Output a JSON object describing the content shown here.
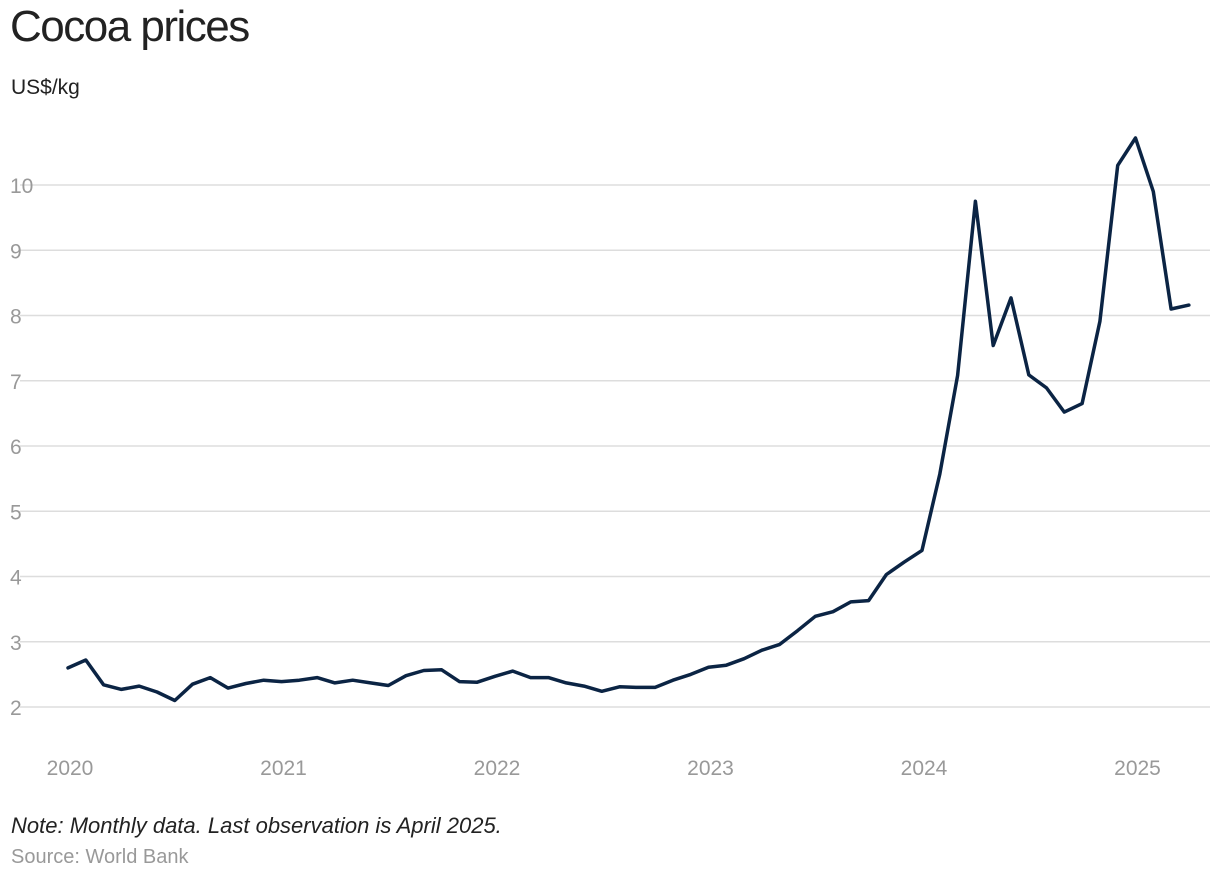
{
  "chart_data": {
    "type": "line",
    "title": "Cocoa prices",
    "ylabel": "US$/kg",
    "xlabel": "",
    "note": "Note: Monthly data. Last observation is April 2025.",
    "source": "Source: World Bank",
    "ylim": [
      1.5,
      11
    ],
    "yticks": [
      2,
      3,
      4,
      5,
      6,
      7,
      8,
      9,
      10
    ],
    "ytick_labels": [
      "2",
      "3",
      "4",
      "5",
      "6",
      "7",
      "8",
      "9",
      "10"
    ],
    "xticks": [
      2020,
      2021,
      2022,
      2023,
      2024,
      2025
    ],
    "xtick_labels": [
      "2020",
      "2021",
      "2022",
      "2023",
      "2024",
      "2025"
    ],
    "grid": true,
    "series": [
      {
        "name": "Cocoa price",
        "color": "#0b2444",
        "start": "2020-01",
        "frequency": "monthly",
        "values": [
          2.6,
          2.72,
          2.34,
          2.27,
          2.32,
          2.23,
          2.1,
          2.35,
          2.45,
          2.29,
          2.36,
          2.41,
          2.39,
          2.41,
          2.45,
          2.37,
          2.41,
          2.37,
          2.33,
          2.48,
          2.56,
          2.57,
          2.39,
          2.38,
          2.47,
          2.55,
          2.45,
          2.45,
          2.37,
          2.32,
          2.24,
          2.31,
          2.3,
          2.3,
          2.41,
          2.5,
          2.61,
          2.64,
          2.74,
          2.87,
          2.96,
          3.17,
          3.39,
          3.46,
          3.61,
          3.63,
          4.03,
          4.22,
          4.4,
          5.57,
          7.08,
          9.75,
          7.54,
          8.27,
          7.09,
          6.89,
          6.52,
          6.65,
          7.91,
          10.3,
          10.72,
          9.9,
          8.1,
          8.16
        ]
      }
    ]
  }
}
